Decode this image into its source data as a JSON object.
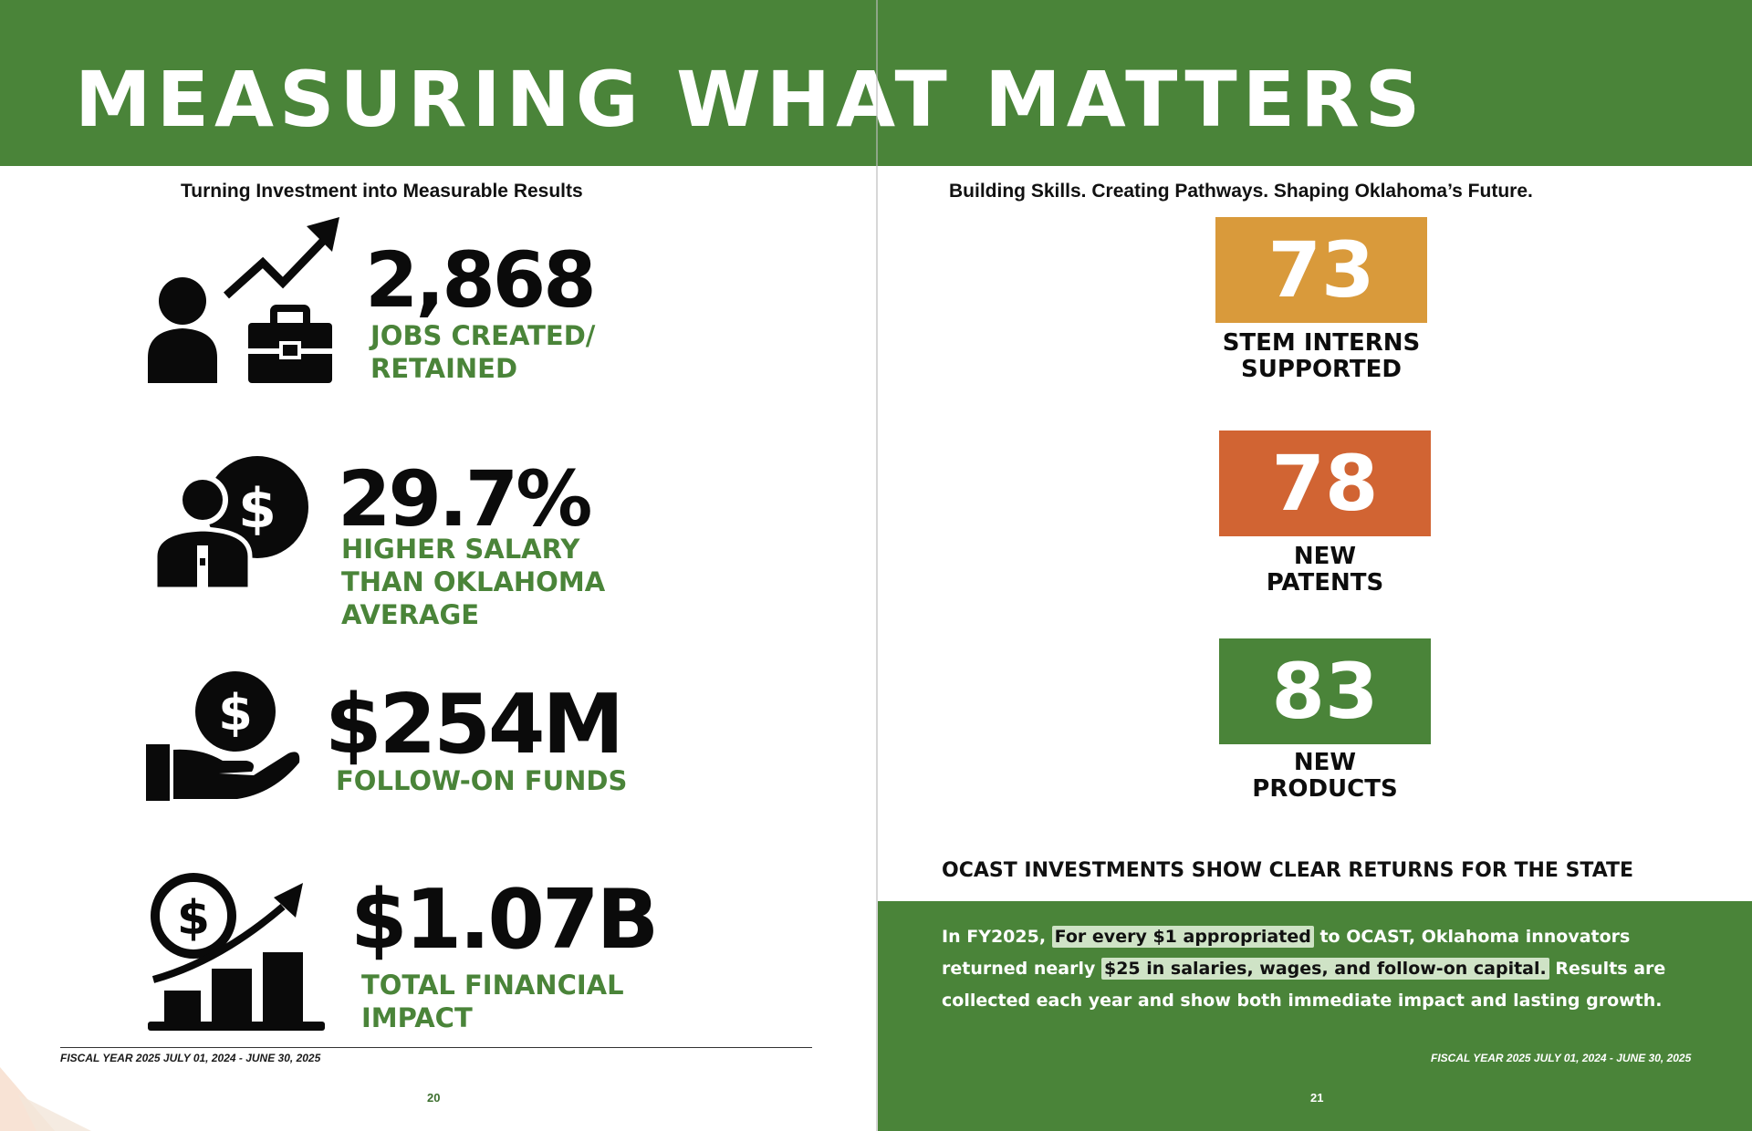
{
  "header": {
    "title": "MEASURING WHAT MATTERS"
  },
  "left_page": {
    "subtitle": "Turning Investment into Measurable Results",
    "metrics": [
      {
        "value": "2,868",
        "label": "JOBS CREATED/\nRETAINED",
        "icon": "person-briefcase-growth-icon"
      },
      {
        "value": "29.7%",
        "label": "HIGHER SALARY\nTHAN OKLAHOMA\nAVERAGE",
        "icon": "person-dollar-icon"
      },
      {
        "value": "$254M",
        "label": "FOLLOW-ON FUNDS",
        "icon": "hand-coin-icon"
      },
      {
        "value": "$1.07B",
        "label": "TOTAL FINANCIAL\nIMPACT",
        "icon": "dollar-growth-chart-icon"
      }
    ],
    "footer": "FISCAL YEAR 2025 JULY 01, 2024 - JUNE 30, 2025",
    "page_number": "20"
  },
  "right_page": {
    "subtitle": "Building Skills. Creating Pathways. Shaping Oklahoma’s Future.",
    "stats": [
      {
        "value": "73",
        "label": "STEM INTERNS\nSUPPORTED",
        "color": "#d99a3b"
      },
      {
        "value": "78",
        "label": "NEW\nPATENTS",
        "color": "#d16433"
      },
      {
        "value": "83",
        "label": "NEW\nPRODUCTS",
        "color": "#4a8439"
      }
    ],
    "section_heading": "OCAST INVESTMENTS SHOW CLEAR RETURNS FOR THE STATE",
    "paragraph": {
      "part1": "In FY2025, ",
      "highlight1": "For every $1 appropriated",
      "part2": " to OCAST, Oklahoma innovators returned nearly ",
      "highlight2": "$25 in salaries, wages, and follow-on capital.",
      "part3": " Results are collected each year and show both immediate impact and lasting growth."
    },
    "footer": "FISCAL YEAR 2025 JULY 01, 2024 - JUNE 30, 2025",
    "page_number": "21"
  },
  "colors": {
    "brand_green": "#4a8439",
    "highlight": "#cfe3c6"
  }
}
